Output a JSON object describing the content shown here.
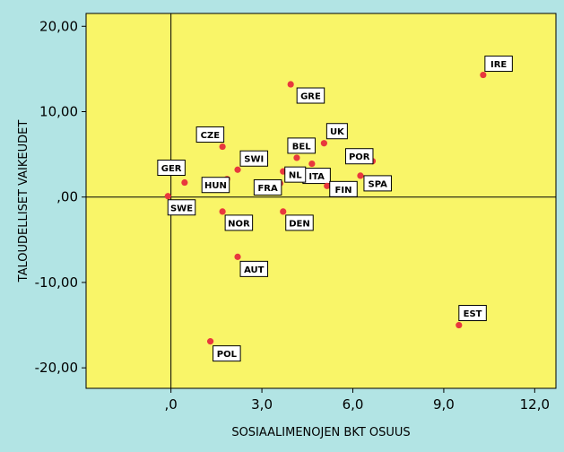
{
  "chart_data": {
    "type": "scatter",
    "title": "",
    "xlabel": "SOSIAALIMENOJEN BKT OSUUS",
    "ylabel": "TALOUDELLISET VAIKEUDET",
    "xlim": [
      -2.8,
      12.7
    ],
    "ylim": [
      -22.4,
      21.5
    ],
    "x_ticks": [
      0,
      3,
      6,
      9,
      12
    ],
    "x_tick_labels": [
      ",0",
      "3,0",
      "6,0",
      "9,0",
      "12,0"
    ],
    "y_ticks": [
      20,
      10,
      0,
      -10,
      -20
    ],
    "y_tick_labels": [
      "20,00",
      "10,00",
      ",00",
      "-10,00",
      "-20,00"
    ],
    "reference_lines": {
      "x": 0,
      "y": 0
    },
    "grid": false,
    "background_color": "#f9f568",
    "outer_color": "#b2e4e4",
    "point_color": "#e8383d",
    "points": [
      {
        "label": "IRE",
        "x": 10.3,
        "y": 14.3
      },
      {
        "label": "GRE",
        "x": 3.95,
        "y": 13.2
      },
      {
        "label": "UK",
        "x": 5.05,
        "y": 6.3
      },
      {
        "label": "CZE",
        "x": 1.7,
        "y": 5.9
      },
      {
        "label": "BEL",
        "x": 4.15,
        "y": 4.6
      },
      {
        "label": "POR",
        "x": 6.65,
        "y": 4.2
      },
      {
        "label": "SWI",
        "x": 2.2,
        "y": 3.2
      },
      {
        "label": "ITA",
        "x": 4.65,
        "y": 3.9
      },
      {
        "label": "FIN",
        "x": 5.15,
        "y": 1.3
      },
      {
        "label": "SPA",
        "x": 6.25,
        "y": 2.5
      },
      {
        "label": "GER",
        "x": 0.45,
        "y": 1.7
      },
      {
        "label": "HUN",
        "x": 1.85,
        "y": 2.1
      },
      {
        "label": "FRA",
        "x": 3.6,
        "y": 1.6
      },
      {
        "label": "NL",
        "x": 3.7,
        "y": 3.0
      },
      {
        "label": "SWE",
        "x": -0.1,
        "y": 0.1
      },
      {
        "label": "NOR",
        "x": 1.7,
        "y": -1.7
      },
      {
        "label": "DEN",
        "x": 3.7,
        "y": -1.7
      },
      {
        "label": "AUT",
        "x": 2.2,
        "y": -7.0
      },
      {
        "label": "EST",
        "x": 9.5,
        "y": -15.0
      },
      {
        "label": "POL",
        "x": 1.3,
        "y": -16.9
      }
    ]
  }
}
